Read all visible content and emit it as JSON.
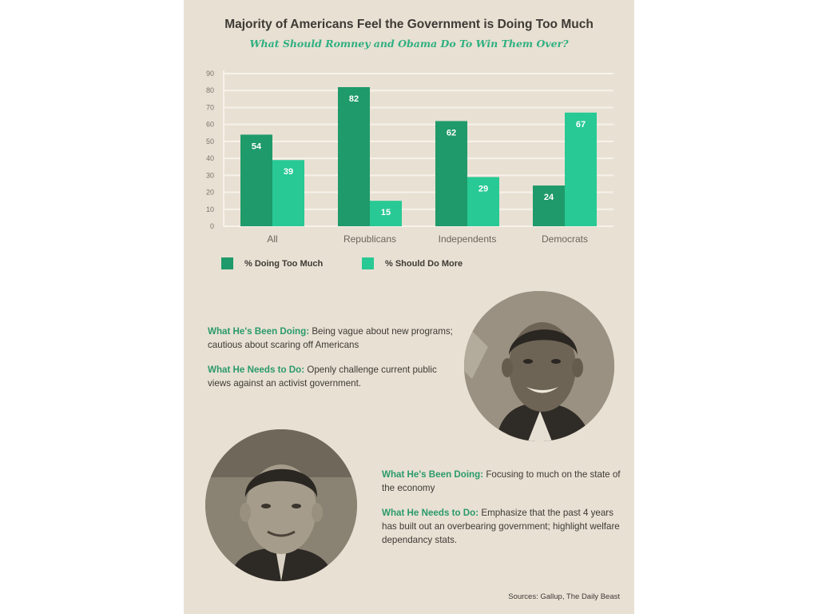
{
  "colors": {
    "too_much": "#1f9a6a",
    "do_more": "#28c994",
    "accent": "#2fb081",
    "background": "#e8e0d3"
  },
  "header": {
    "title": "Majority of Americans Feel the Government is Doing Too Much",
    "subtitle": "What Should Romney and Obama Do To Win Them Over?"
  },
  "chart_data": {
    "type": "bar",
    "categories": [
      "All",
      "Republicans",
      "Independents",
      "Democrats"
    ],
    "series": [
      {
        "name": "% Doing Too Much",
        "values": [
          54,
          82,
          62,
          24
        ]
      },
      {
        "name": "% Should Do More",
        "values": [
          39,
          15,
          29,
          67
        ]
      }
    ],
    "ylim": [
      0,
      90
    ],
    "yticks": [
      0,
      10,
      20,
      30,
      40,
      50,
      60,
      70,
      80,
      90
    ],
    "grid": true,
    "legend_placement": "bottom-left"
  },
  "obama": {
    "doing_label": "What He's Been Doing:",
    "doing_text": "Being vague about new programs; cautious about scaring off Americans",
    "needs_label": "What He Needs to Do:",
    "needs_text": "Openly challenge current public views against an activist government."
  },
  "romney": {
    "doing_label": "What He's Been Doing:",
    "doing_text": "Focusing to much on the state of the economy",
    "needs_label": "What He Needs to Do:",
    "needs_text": "Emphasize that the past 4 years has built out an overbearing government; highlight welfare dependancy stats."
  },
  "source": "Sources: Gallup, The Daily Beast"
}
